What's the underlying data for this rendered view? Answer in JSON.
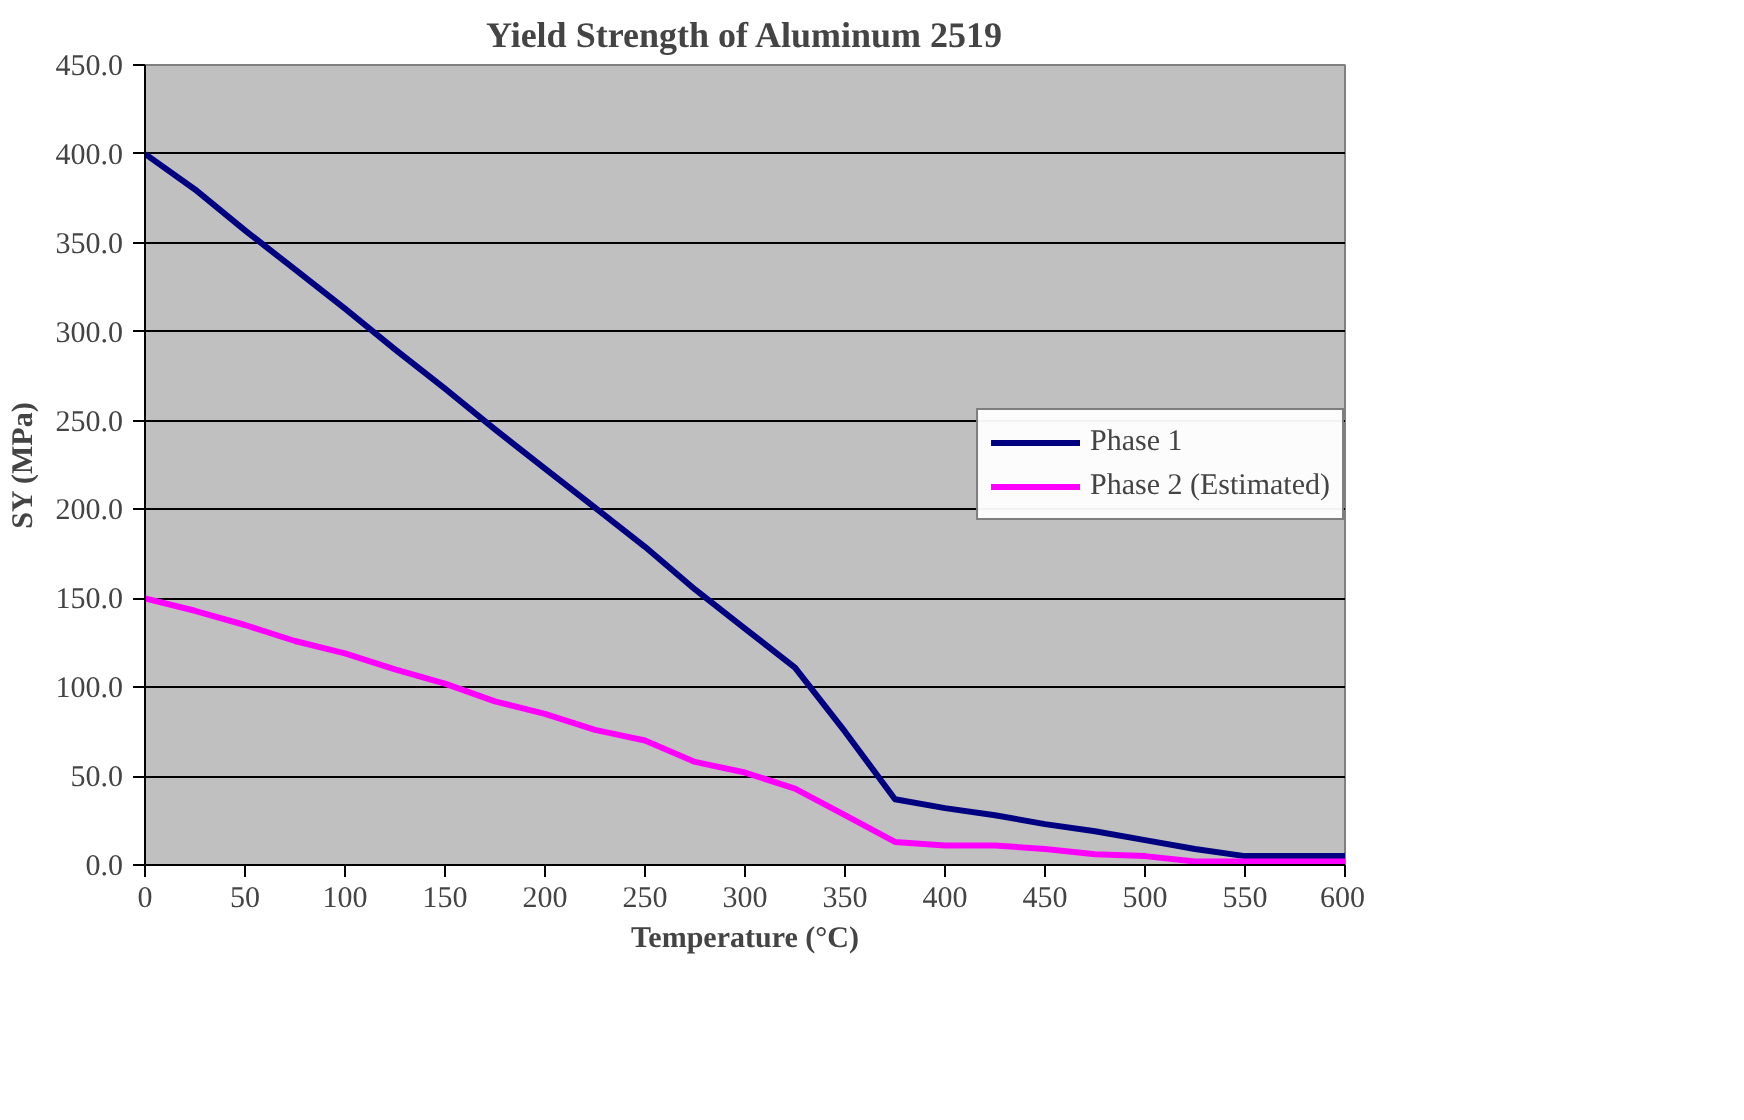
{
  "chart_data": {
    "type": "line",
    "title": "Yield Strength of Aluminum 2519",
    "xlabel": "Temperature (°C)",
    "ylabel": "SY (MPa)",
    "x": [
      0,
      25,
      50,
      75,
      100,
      125,
      150,
      175,
      200,
      225,
      250,
      275,
      300,
      325,
      350,
      375,
      400,
      425,
      450,
      475,
      500,
      525,
      550,
      575,
      600
    ],
    "series": [
      {
        "name": "Phase 1",
        "color": "#000080",
        "values": [
          400,
          380,
          357,
          335,
          313,
          290,
          268,
          245,
          223,
          201,
          179,
          155,
          133,
          111,
          75,
          37,
          32,
          28,
          23,
          19,
          14,
          9,
          5,
          5,
          5
        ]
      },
      {
        "name": "Phase 2 (Estimated)",
        "color": "#ff00ff",
        "values": [
          150,
          143,
          135,
          126,
          119,
          110,
          102,
          92,
          85,
          76,
          70,
          58,
          52,
          43,
          28,
          13,
          11,
          11,
          9,
          6,
          5,
          2,
          2,
          2,
          2
        ]
      }
    ],
    "xlim": [
      0,
      600
    ],
    "xticks": [
      0,
      50,
      100,
      150,
      200,
      250,
      300,
      350,
      400,
      450,
      500,
      550,
      600
    ],
    "ylim": [
      0,
      450
    ],
    "yticks": [
      {
        "value": 0,
        "label": "0.0"
      },
      {
        "value": 50,
        "label": "50.0"
      },
      {
        "value": 100,
        "label": "100.0"
      },
      {
        "value": 150,
        "label": "150.0"
      },
      {
        "value": 200,
        "label": "200.0"
      },
      {
        "value": 250,
        "label": "250.0"
      },
      {
        "value": 300,
        "label": "300.0"
      },
      {
        "value": 350,
        "label": "350.0"
      },
      {
        "value": 400,
        "label": "400.0"
      },
      {
        "value": 450,
        "label": "450.0"
      }
    ],
    "grid": "y",
    "legend": "right",
    "marker": "none",
    "line_style": "solid"
  }
}
